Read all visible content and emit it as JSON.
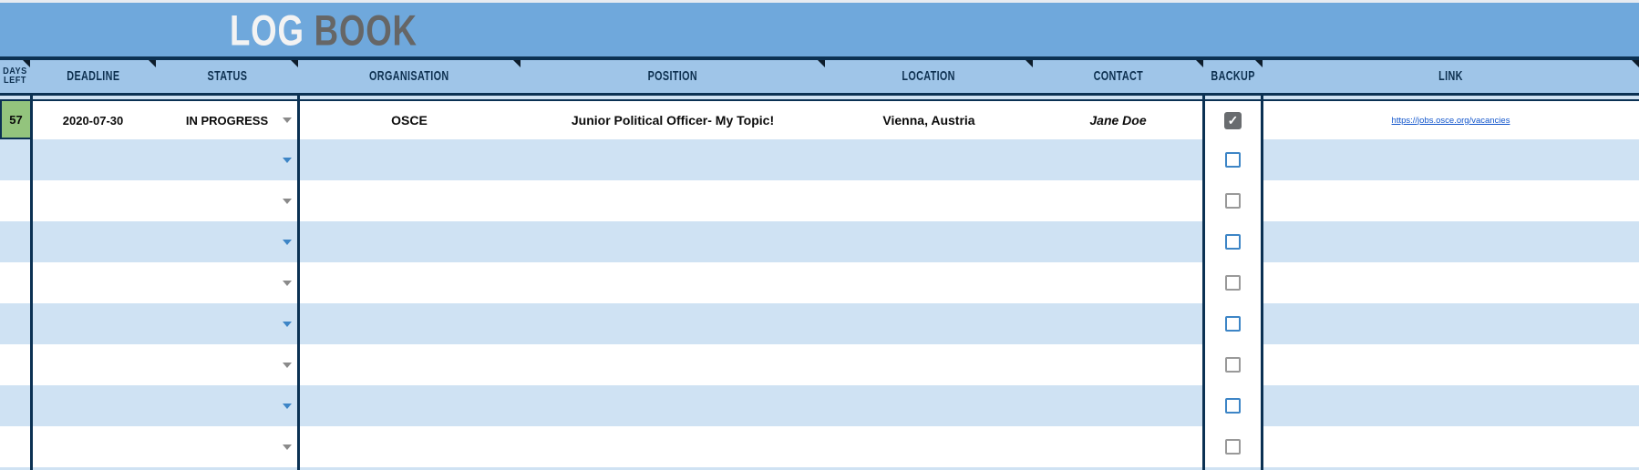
{
  "app": {
    "title_primary": "LOG",
    "title_secondary": "BOOK"
  },
  "colors": {
    "banner_blue": "#6fa8dc",
    "header_blue": "#9fc5e8",
    "stripe_blue": "#cfe2f3",
    "border_navy": "#0b3153",
    "days_left_green": "#93c47d",
    "link_blue": "#1155cc",
    "checkbox_blue": "#3d85c6",
    "checkbox_gray": "#999999",
    "checkbox_checked_fill": "#696c6f",
    "dropdown_arrow_blue": "#3d85c6",
    "dropdown_arrow_gray": "#8a8a8a",
    "title_primary_color": "#f3f3f3",
    "title_secondary_color": "#666666"
  },
  "table": {
    "columns": [
      {
        "id": "days_left",
        "label": "DAYS\nLEFT"
      },
      {
        "id": "deadline",
        "label": "DEADLINE"
      },
      {
        "id": "status",
        "label": "STATUS"
      },
      {
        "id": "organisation",
        "label": "ORGANISATION"
      },
      {
        "id": "position",
        "label": "POSITION"
      },
      {
        "id": "location",
        "label": "LOCATION"
      },
      {
        "id": "contact",
        "label": "CONTACT"
      },
      {
        "id": "backup",
        "label": "BACKUP"
      },
      {
        "id": "link",
        "label": "LINK"
      }
    ],
    "rows": [
      {
        "days_left": "57",
        "deadline": "2020-07-30",
        "status": "IN PROGRESS",
        "organisation": "OSCE",
        "position": "Junior Political Officer- My Topic!",
        "location": "Vienna, Austria",
        "contact": "Jane Doe",
        "backup_checked": true,
        "link": "https://jobs.osce.org/vacancies"
      },
      {
        "days_left": "",
        "deadline": "",
        "status": "",
        "organisation": "",
        "position": "",
        "location": "",
        "contact": "",
        "backup_checked": false,
        "link": ""
      },
      {
        "days_left": "",
        "deadline": "",
        "status": "",
        "organisation": "",
        "position": "",
        "location": "",
        "contact": "",
        "backup_checked": false,
        "link": ""
      },
      {
        "days_left": "",
        "deadline": "",
        "status": "",
        "organisation": "",
        "position": "",
        "location": "",
        "contact": "",
        "backup_checked": false,
        "link": ""
      },
      {
        "days_left": "",
        "deadline": "",
        "status": "",
        "organisation": "",
        "position": "",
        "location": "",
        "contact": "",
        "backup_checked": false,
        "link": ""
      },
      {
        "days_left": "",
        "deadline": "",
        "status": "",
        "organisation": "",
        "position": "",
        "location": "",
        "contact": "",
        "backup_checked": false,
        "link": ""
      },
      {
        "days_left": "",
        "deadline": "",
        "status": "",
        "organisation": "",
        "position": "",
        "location": "",
        "contact": "",
        "backup_checked": false,
        "link": ""
      },
      {
        "days_left": "",
        "deadline": "",
        "status": "",
        "organisation": "",
        "position": "",
        "location": "",
        "contact": "",
        "backup_checked": false,
        "link": ""
      },
      {
        "days_left": "",
        "deadline": "",
        "status": "",
        "organisation": "",
        "position": "",
        "location": "",
        "contact": "",
        "backup_checked": false,
        "link": ""
      }
    ]
  }
}
